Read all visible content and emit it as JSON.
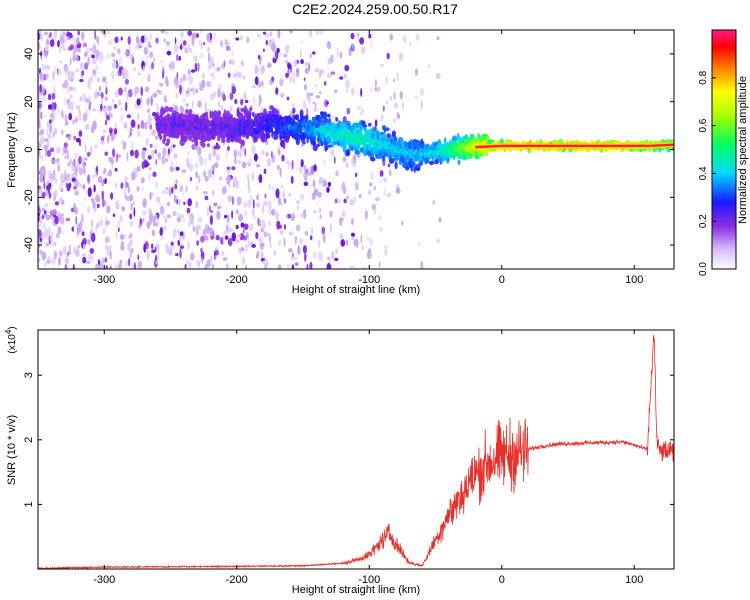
{
  "title": "C2E2.2024.259.00.50.R17",
  "colors": {
    "snr_line": "#e8302a",
    "spectral_core": "#ff1a3a",
    "purple": "#7a1fe0",
    "light_purple": "#c8a8f0"
  },
  "chart_data": [
    {
      "type": "heatmap",
      "name": "spectrogram",
      "xlabel": "Height of straight line (km)",
      "ylabel": "Frequency (Hz)",
      "xlim": [
        -350,
        130
      ],
      "ylim": [
        -50,
        50
      ],
      "x_ticks": [
        -300,
        -200,
        -100,
        0,
        100
      ],
      "x_tick_labels": [
        "-300",
        "-200",
        "-100",
        "0",
        "100"
      ],
      "y_ticks": [
        -40,
        -20,
        0,
        20,
        40
      ],
      "y_tick_labels": [
        "-40",
        "-20",
        "0",
        "20",
        "40"
      ],
      "colorbar": {
        "label": "Normalized spectral amplitude",
        "range": [
          0,
          1
        ],
        "ticks": [
          0.0,
          0.2,
          0.4,
          0.6,
          0.8
        ],
        "tick_labels": [
          "0.0",
          "0.2",
          "0.4",
          "0.6",
          "0.8"
        ],
        "colormap": "rainbow"
      },
      "ridge": {
        "x": [
          -250,
          -210,
          -180,
          -150,
          -130,
          -110,
          -95,
          -80,
          -65,
          -50,
          -35,
          -20,
          0,
          50,
          100,
          110,
          130
        ],
        "freq": [
          10,
          9,
          10,
          9,
          7,
          5,
          3,
          0,
          -2,
          -1,
          0,
          1,
          1.5,
          1.5,
          1.5,
          1.5,
          2
        ],
        "amplitude": [
          0.18,
          0.2,
          0.25,
          0.35,
          0.45,
          0.5,
          0.45,
          0.42,
          0.4,
          0.45,
          0.6,
          0.8,
          0.92,
          0.95,
          0.9,
          0.85,
          0.7
        ]
      }
    },
    {
      "type": "line",
      "name": "snr",
      "xlabel": "Height of straight line (km)",
      "ylabel": "SNR (10 * v/v)",
      "y_multiplier": "(x10",
      "y_multiplier_exp": "4",
      "xlim": [
        -350,
        130
      ],
      "ylim": [
        0,
        3.7
      ],
      "x_ticks": [
        -300,
        -200,
        -100,
        0,
        100
      ],
      "x_tick_labels": [
        "-300",
        "-200",
        "-100",
        "0",
        "100"
      ],
      "y_ticks": [
        1,
        2,
        3
      ],
      "y_tick_labels": [
        "1",
        "2",
        "3"
      ],
      "envelope": {
        "x": [
          -350,
          -300,
          -200,
          -150,
          -120,
          -110,
          -100,
          -90,
          -85,
          -80,
          -70,
          -60,
          -50,
          -40,
          -30,
          -20,
          -10,
          0,
          10,
          20,
          30,
          40,
          60,
          80,
          90,
          95,
          100,
          105,
          110,
          113,
          115,
          117,
          120,
          130
        ],
        "y": [
          0.0,
          0.02,
          0.03,
          0.04,
          0.08,
          0.14,
          0.22,
          0.45,
          0.55,
          0.4,
          0.1,
          0.05,
          0.45,
          0.85,
          1.15,
          1.45,
          1.65,
          1.75,
          1.78,
          1.85,
          1.9,
          1.93,
          1.95,
          1.96,
          1.97,
          1.95,
          1.92,
          1.88,
          1.85,
          3.0,
          3.7,
          1.95,
          1.82,
          1.82
        ]
      }
    }
  ]
}
